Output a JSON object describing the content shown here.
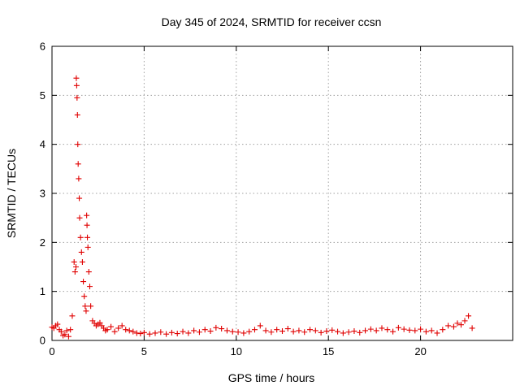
{
  "chart_data": {
    "type": "scatter",
    "title": "Day 345 of 2024, SRMTID for receiver ccsn",
    "xlabel": "GPS time / hours",
    "ylabel": "SRMTID / TECUs",
    "xlim": [
      0,
      25
    ],
    "ylim": [
      0,
      6
    ],
    "xticks": [
      0,
      5,
      10,
      15,
      20
    ],
    "yticks": [
      0,
      1,
      2,
      3,
      4,
      5,
      6
    ],
    "grid": true,
    "marker": "+",
    "series_color": "#e00000",
    "series": [
      {
        "name": "SRMTID",
        "x": [
          0.0,
          0.1,
          0.2,
          0.3,
          0.4,
          0.5,
          0.6,
          0.7,
          0.8,
          0.9,
          1.0,
          1.1,
          1.2,
          1.25,
          1.3,
          1.32,
          1.34,
          1.36,
          1.38,
          1.4,
          1.42,
          1.45,
          1.48,
          1.5,
          1.55,
          1.6,
          1.65,
          1.7,
          1.75,
          1.8,
          1.85,
          1.88,
          1.9,
          1.92,
          1.95,
          2.0,
          2.05,
          2.1,
          2.2,
          2.3,
          2.4,
          2.5,
          2.6,
          2.7,
          2.8,
          2.9,
          3.0,
          3.2,
          3.4,
          3.6,
          3.8,
          4.0,
          4.2,
          4.4,
          4.6,
          4.8,
          5.0,
          5.3,
          5.6,
          5.9,
          6.2,
          6.5,
          6.8,
          7.1,
          7.4,
          7.7,
          8.0,
          8.3,
          8.6,
          8.9,
          9.2,
          9.5,
          9.8,
          10.1,
          10.4,
          10.7,
          11.0,
          11.3,
          11.6,
          11.9,
          12.2,
          12.5,
          12.8,
          13.1,
          13.4,
          13.7,
          14.0,
          14.3,
          14.6,
          14.9,
          15.2,
          15.5,
          15.8,
          16.1,
          16.4,
          16.7,
          17.0,
          17.3,
          17.6,
          17.9,
          18.2,
          18.5,
          18.8,
          19.1,
          19.4,
          19.7,
          20.0,
          20.3,
          20.6,
          20.9,
          21.2,
          21.5,
          21.8,
          22.0,
          22.2,
          22.4,
          22.6,
          22.8
        ],
        "y": [
          0.27,
          0.25,
          0.3,
          0.33,
          0.22,
          0.18,
          0.1,
          0.12,
          0.2,
          0.08,
          0.22,
          0.5,
          1.6,
          1.4,
          1.5,
          5.35,
          5.2,
          4.95,
          4.6,
          4.0,
          3.6,
          3.3,
          2.9,
          2.5,
          2.1,
          1.8,
          1.6,
          1.2,
          0.9,
          0.7,
          0.6,
          2.55,
          2.35,
          2.1,
          1.9,
          1.4,
          1.1,
          0.7,
          0.4,
          0.35,
          0.3,
          0.33,
          0.36,
          0.3,
          0.25,
          0.2,
          0.22,
          0.28,
          0.18,
          0.25,
          0.3,
          0.22,
          0.2,
          0.18,
          0.15,
          0.14,
          0.16,
          0.13,
          0.15,
          0.17,
          0.13,
          0.16,
          0.14,
          0.18,
          0.15,
          0.2,
          0.17,
          0.22,
          0.19,
          0.26,
          0.24,
          0.2,
          0.18,
          0.17,
          0.15,
          0.18,
          0.22,
          0.3,
          0.2,
          0.17,
          0.22,
          0.19,
          0.24,
          0.18,
          0.2,
          0.17,
          0.22,
          0.2,
          0.16,
          0.19,
          0.21,
          0.18,
          0.15,
          0.17,
          0.19,
          0.16,
          0.2,
          0.23,
          0.2,
          0.25,
          0.22,
          0.18,
          0.26,
          0.23,
          0.21,
          0.2,
          0.23,
          0.18,
          0.2,
          0.15,
          0.22,
          0.3,
          0.28,
          0.35,
          0.32,
          0.4,
          0.5,
          0.25
        ]
      }
    ]
  }
}
